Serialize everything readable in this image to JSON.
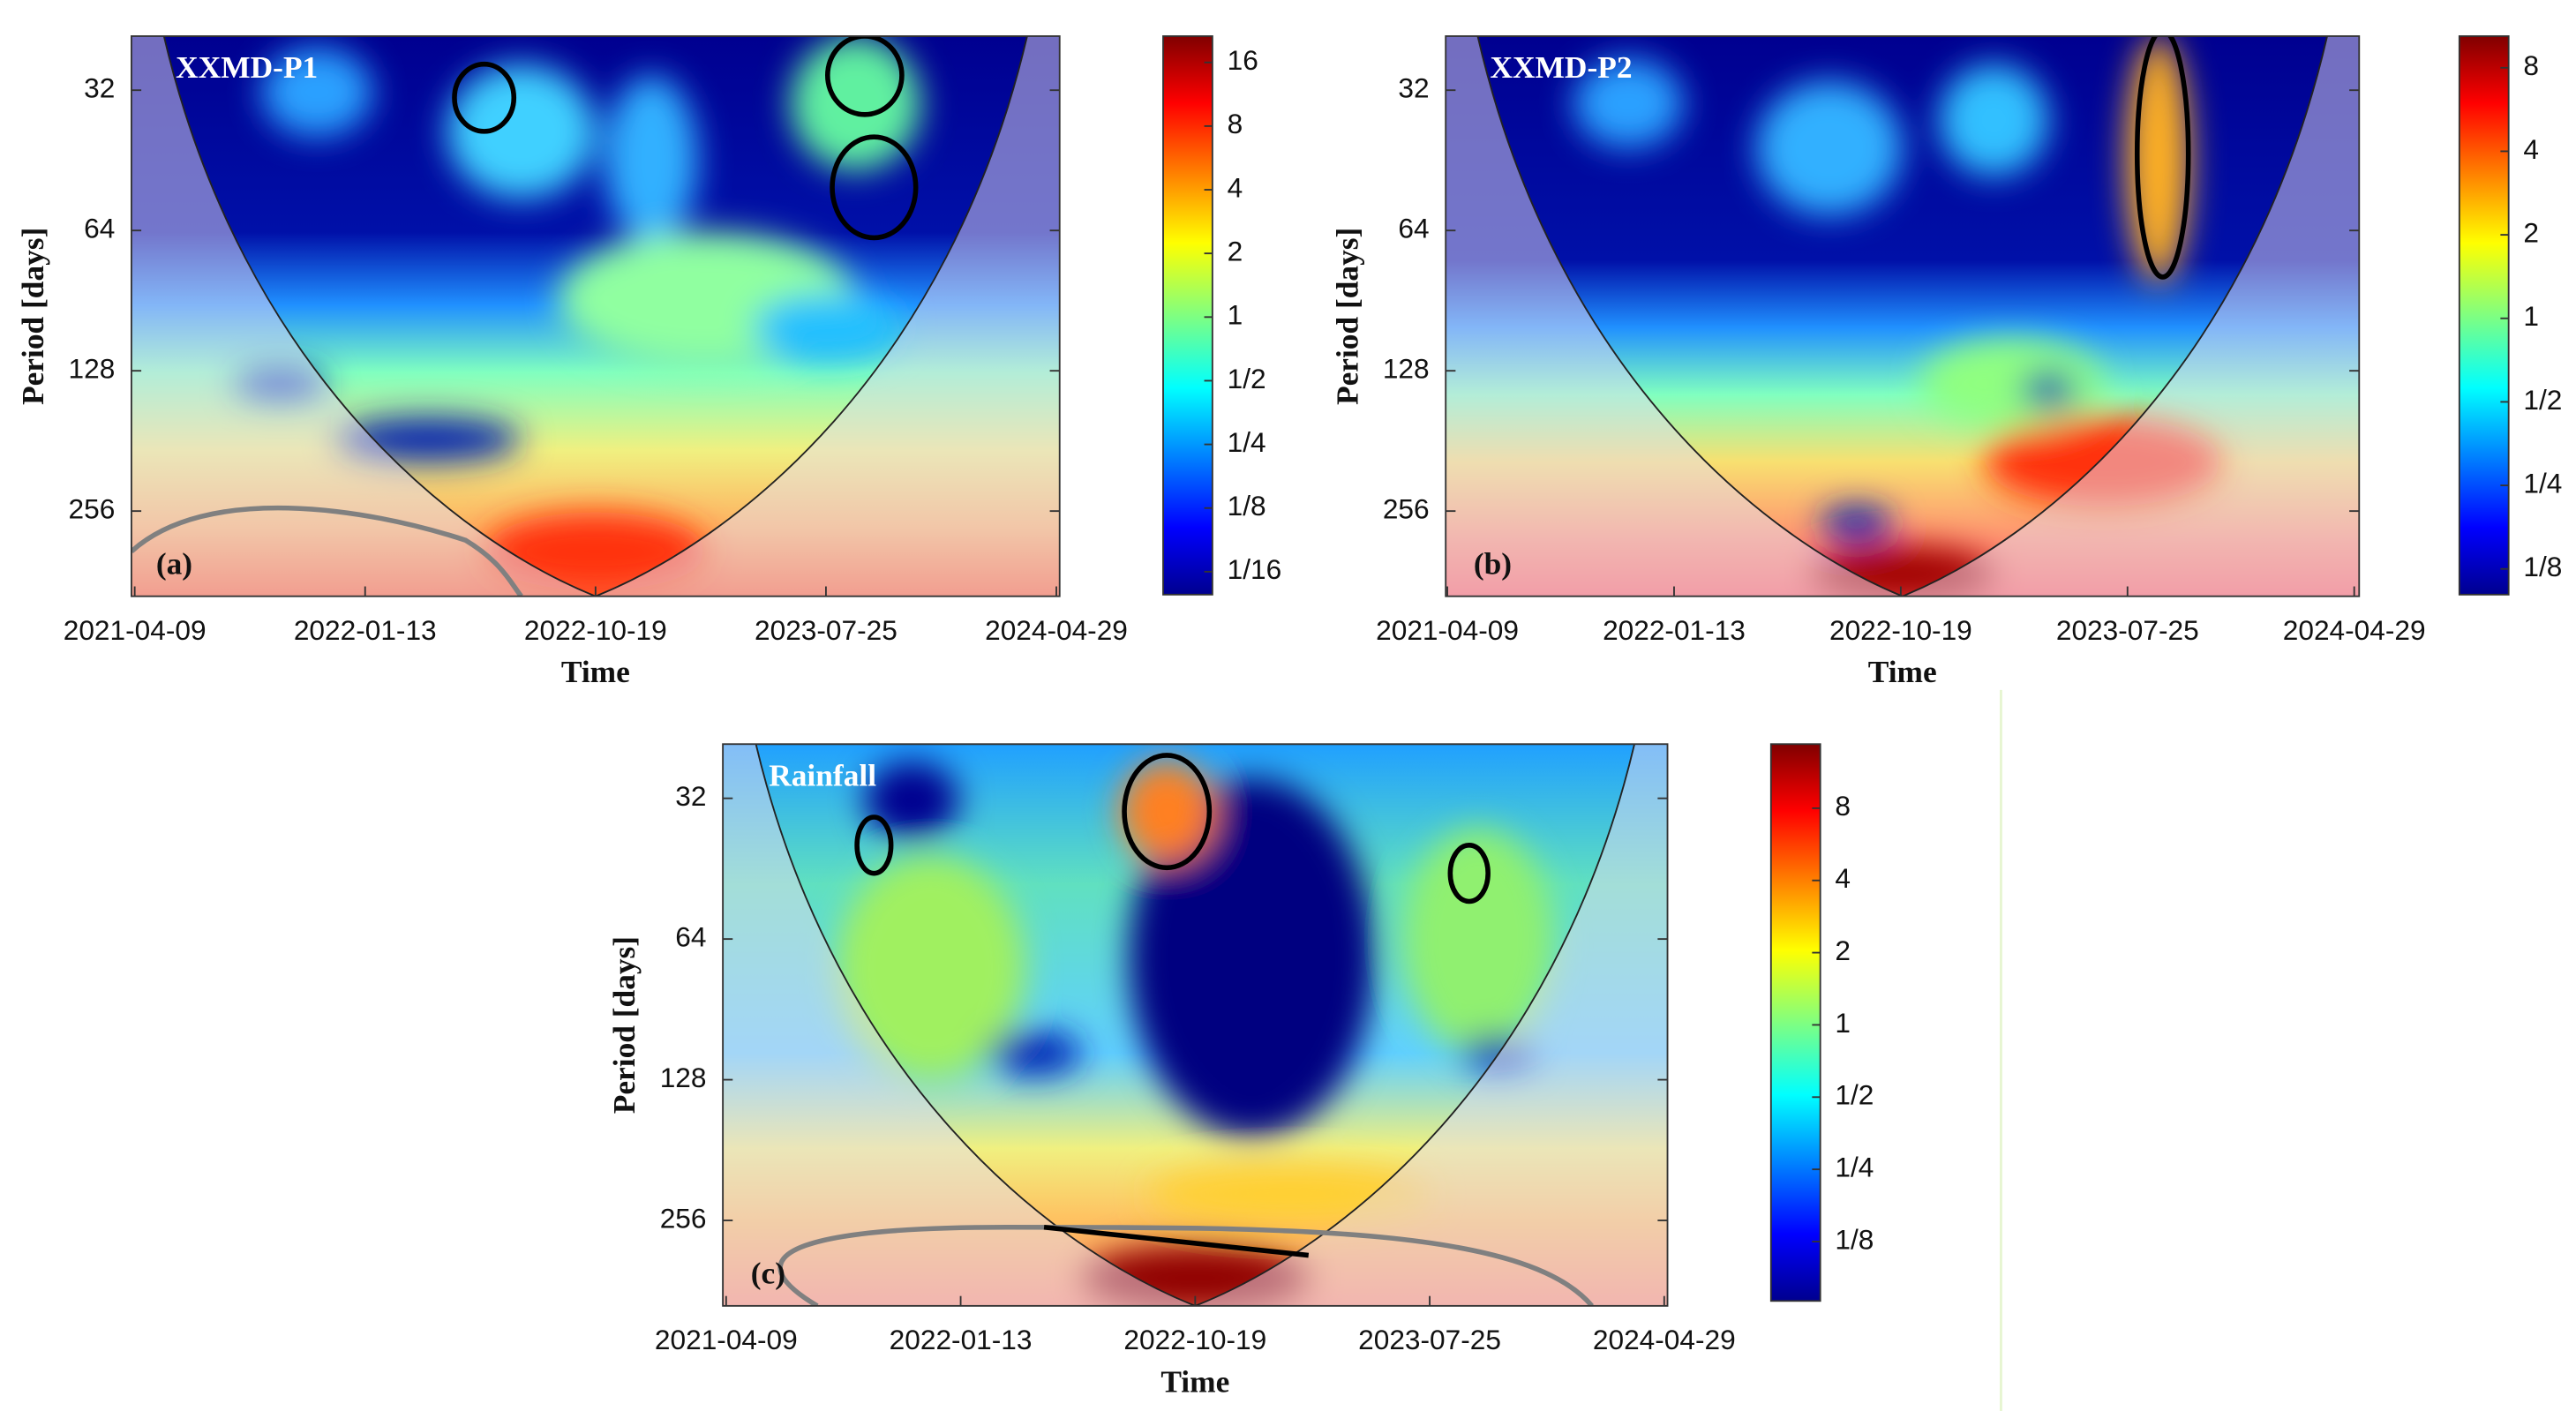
{
  "chart_data": [
    {
      "type": "heatmap",
      "title": "XXMD-P1",
      "panel_label": "(a)",
      "xlabel": "Time",
      "ylabel": "Period [days]",
      "xlim": [
        "2021-04-09",
        "2024-04-29"
      ],
      "xticks": [
        "2021-04-09",
        "2022-01-13",
        "2022-10-19",
        "2023-07-25",
        "2024-04-29"
      ],
      "ylim": [
        24.5,
        390
      ],
      "yticks": [
        32,
        64,
        128,
        256
      ],
      "ylog": true,
      "colormap": "jet",
      "colorbar": {
        "lim": [
          0.0487,
          21.3
        ],
        "log": true,
        "ticks": [
          {
            "value": 16,
            "label": "16"
          },
          {
            "value": 8,
            "label": "8"
          },
          {
            "value": 4,
            "label": "4"
          },
          {
            "value": 2,
            "label": "2"
          },
          {
            "value": 1,
            "label": "1"
          },
          {
            "value": 0.5,
            "label": "1/2"
          },
          {
            "value": 0.25,
            "label": "1/4"
          },
          {
            "value": 0.125,
            "label": "1/8"
          },
          {
            "value": 0.0625,
            "label": "1/16"
          }
        ]
      }
    },
    {
      "type": "heatmap",
      "title": "XXMD-P2",
      "panel_label": "(b)",
      "xlabel": "Time",
      "ylabel": "Period [days]",
      "xlim": [
        "2021-04-09",
        "2024-04-29"
      ],
      "xticks": [
        "2021-04-09",
        "2022-01-13",
        "2022-10-19",
        "2023-07-25",
        "2024-04-29"
      ],
      "ylim": [
        24.5,
        390
      ],
      "yticks": [
        32,
        64,
        128,
        256
      ],
      "ylog": true,
      "colormap": "jet",
      "colorbar": {
        "lim": [
          0.101,
          10.4
        ],
        "log": true,
        "ticks": [
          {
            "value": 8,
            "label": "8"
          },
          {
            "value": 4,
            "label": "4"
          },
          {
            "value": 2,
            "label": "2"
          },
          {
            "value": 1,
            "label": "1"
          },
          {
            "value": 0.5,
            "label": "1/2"
          },
          {
            "value": 0.25,
            "label": "1/4"
          },
          {
            "value": 0.125,
            "label": "1/8"
          }
        ]
      }
    },
    {
      "type": "heatmap",
      "title": "Rainfall",
      "panel_label": "(c)",
      "xlabel": "Time",
      "ylabel": "Period [days]",
      "xlim": [
        "2021-04-09",
        "2024-04-29"
      ],
      "xticks": [
        "2021-04-09",
        "2022-01-13",
        "2022-10-19",
        "2023-07-25",
        "2024-04-29"
      ],
      "ylim": [
        24.5,
        390
      ],
      "yticks": [
        32,
        64,
        128,
        256
      ],
      "ylog": true,
      "colormap": "jet",
      "colorbar": {
        "lim": [
          0.0707,
          14.8
        ],
        "log": true,
        "ticks": [
          {
            "value": 8,
            "label": "8"
          },
          {
            "value": 4,
            "label": "4"
          },
          {
            "value": 2,
            "label": "2"
          },
          {
            "value": 1,
            "label": "1"
          },
          {
            "value": 0.5,
            "label": "1/2"
          },
          {
            "value": 0.25,
            "label": "1/4"
          },
          {
            "value": 0.125,
            "label": "1/8"
          }
        ]
      }
    }
  ]
}
